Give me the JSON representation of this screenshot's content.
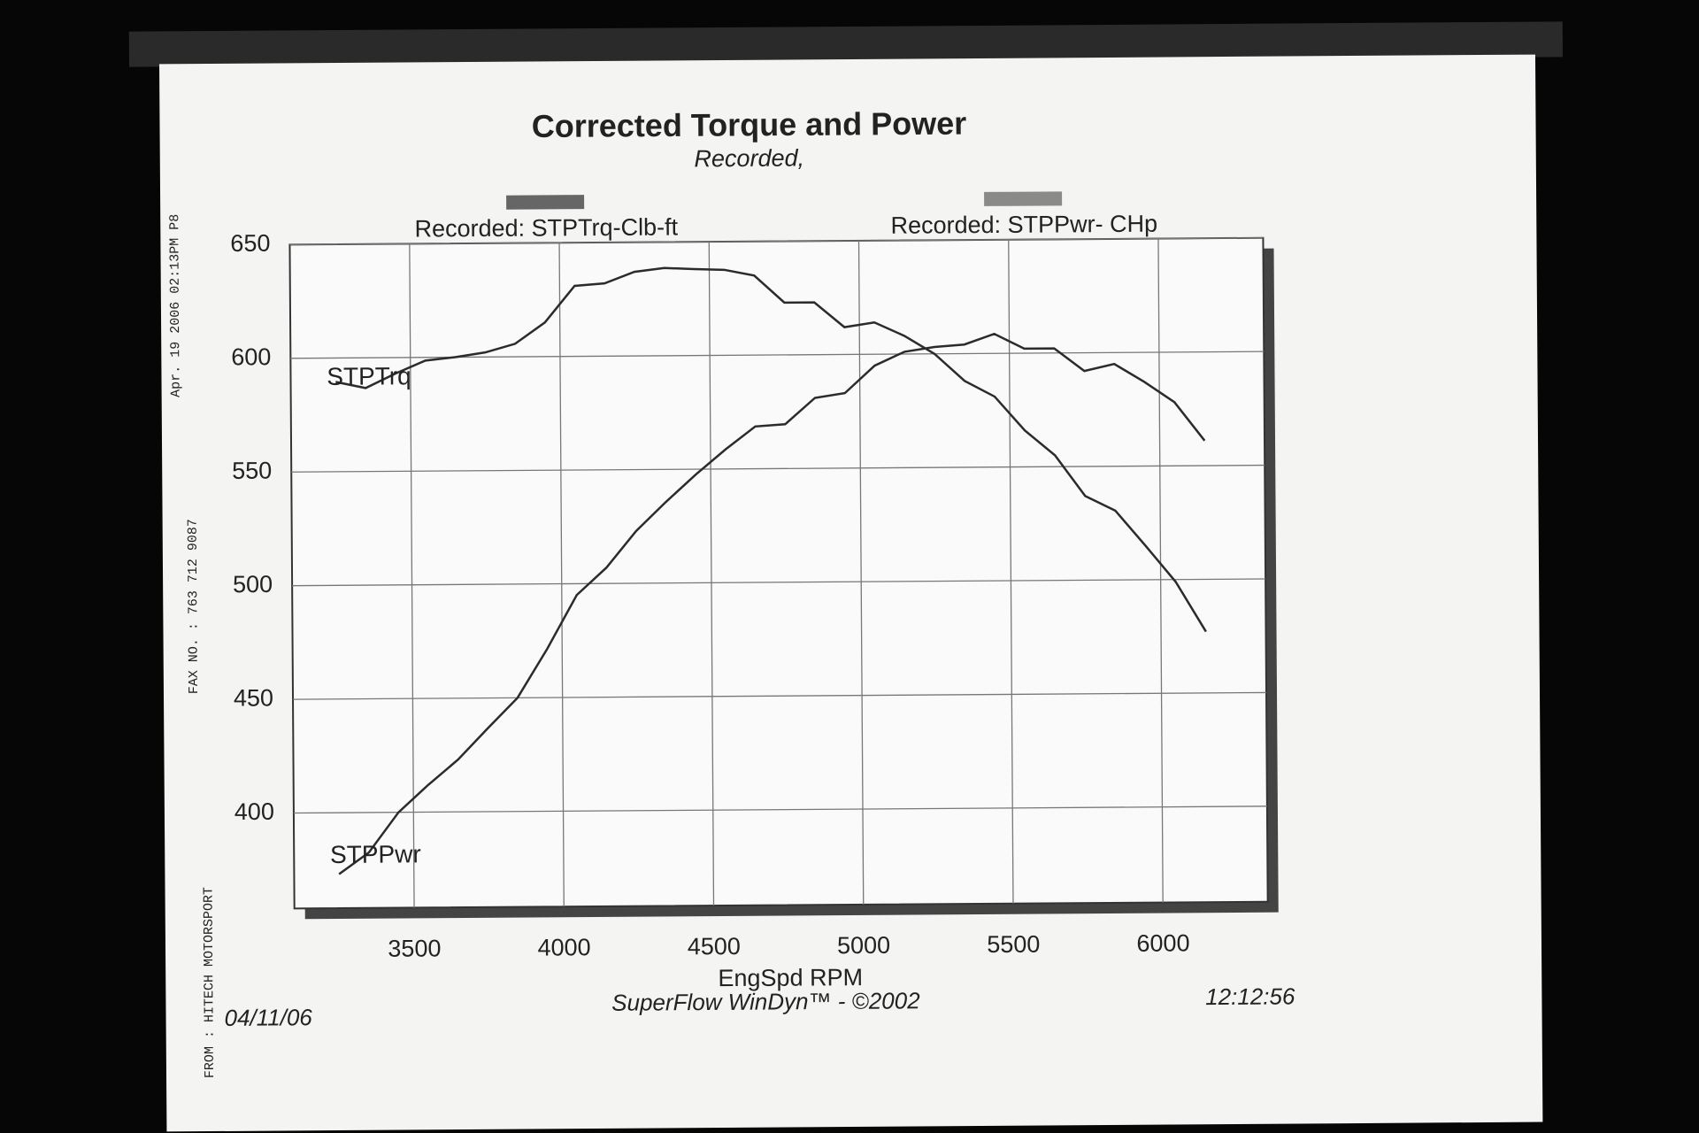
{
  "chart_data": {
    "type": "line",
    "title": "Corrected Torque and Power",
    "subtitle": "Recorded,",
    "x_label": "EngSpd  RPM",
    "x": [
      3250,
      3350,
      3450,
      3550,
      3650,
      3750,
      3850,
      3950,
      4050,
      4150,
      4250,
      4350,
      4450,
      4550,
      4650,
      4750,
      4850,
      4950,
      5050,
      5150,
      5250,
      5350,
      5450,
      5550,
      5650,
      5750,
      5850,
      5950,
      6050,
      6150
    ],
    "series": [
      {
        "name": "Recorded: STPTrq-Clb-ft",
        "color": "#2b2b2b",
        "legend_color": "#666666",
        "values": [
          589.5,
          586.7,
          593,
          598.6,
          600,
          602,
          605.7,
          615,
          631,
          632,
          637,
          638.6,
          638,
          637.6,
          635,
          623,
          623,
          612,
          614,
          608,
          600,
          588,
          581,
          566,
          555,
          537,
          530.5,
          515,
          499,
          477
        ]
      },
      {
        "name": "Recorded: STPPwr- CHp",
        "color": "#2b2b2b",
        "legend_color": "#8a8a8a",
        "values": [
          373,
          382.4,
          400,
          412,
          423,
          436.7,
          450,
          471.4,
          495,
          507,
          523,
          535.7,
          547.6,
          558.6,
          568.6,
          569.5,
          581,
          583,
          595,
          601,
          603,
          604,
          608.6,
          602,
          602,
          592,
          595,
          587,
          578,
          561
        ]
      }
    ],
    "annotations": [
      "STPTrq",
      "STPPwr"
    ],
    "xlim": [
      3100,
      6350
    ],
    "xticks": [
      3500,
      4000,
      4500,
      5000,
      5500,
      6000
    ],
    "ylim": [
      358,
      650
    ],
    "yticks": [
      400,
      450,
      500,
      550,
      600,
      650
    ],
    "grid": true,
    "footer": {
      "date": "04/11/06",
      "software": "SuperFlow WinDyn™ - ©2002",
      "time": "12:12:56"
    },
    "fax_header": [
      "FROM : HITECH MOTORSPORT",
      "FAX NO. : 763 712 9087",
      "Apr. 19 2006 02:13PM P8"
    ]
  }
}
